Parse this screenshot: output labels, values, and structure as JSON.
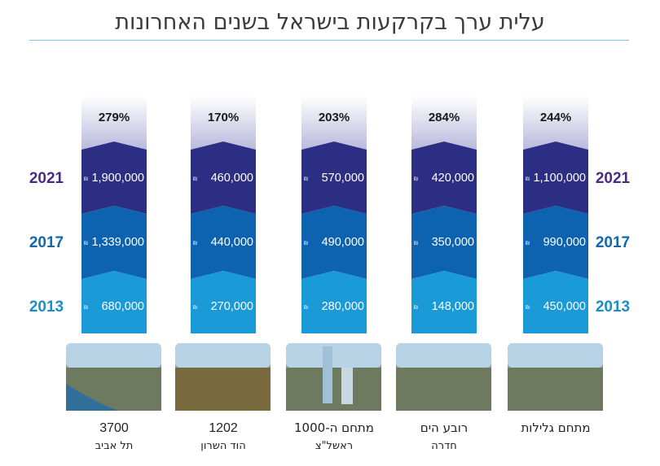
{
  "page": {
    "title": "עלית ערך בקרקעות בישראל בשנים האחרונות"
  },
  "colors": {
    "y2021": "#2c2e83",
    "y2017": "#0e63b1",
    "y2013": "#1a9ad6",
    "pct_top": "#ffffff",
    "pct_bottom": "#b9b9dc",
    "year2021_text": "#4b2a86",
    "year2017_text": "#1368ad",
    "year2013_text": "#1b8ec5"
  },
  "chart_data": {
    "type": "table",
    "title": "עלית ערך בקרקעות בישראל בשנים האחרונות",
    "years": [
      "2021",
      "2017",
      "2013"
    ],
    "currency_symbol": "₪",
    "projects": [
      {
        "label_line1": "3700",
        "label_line2": "תל אביב",
        "percent": "279%",
        "values": [
          "1,900,000",
          "1,339,000",
          "680,000"
        ]
      },
      {
        "label_line1": "1202",
        "label_line2": "הוד השרון",
        "percent": "170%",
        "values": [
          "460,000",
          "440,000",
          "270,000"
        ]
      },
      {
        "label_line1": "מתחם ה-1000",
        "label_line2": "ראשל\"צ",
        "percent": "203%",
        "values": [
          "570,000",
          "490,000",
          "280,000"
        ]
      },
      {
        "label_line1": "רובע הים",
        "label_line2": "חדרה",
        "percent": "284%",
        "values": [
          "420,000",
          "350,000",
          "148,000"
        ]
      },
      {
        "label_line1": "מתחם גלילות",
        "label_line2": "",
        "percent": "244%",
        "values": [
          "1,100,000",
          "990,000",
          "450,000"
        ]
      }
    ]
  }
}
